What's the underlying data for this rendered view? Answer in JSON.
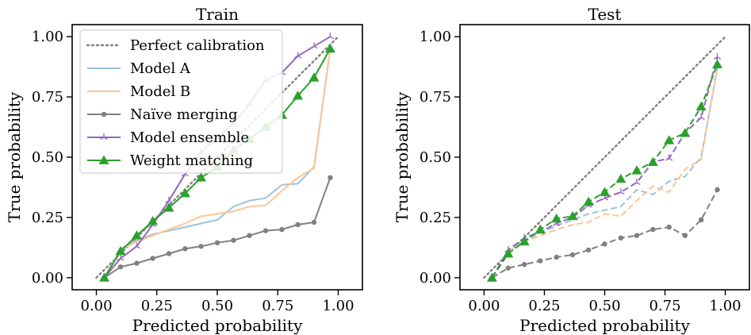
{
  "chart_data": [
    {
      "type": "line",
      "title": "Train",
      "xlabel": "Predicted probability",
      "ylabel": "True probability",
      "xlim": [
        -0.1,
        1.1
      ],
      "ylim": [
        -0.05,
        1.05
      ],
      "xticks": [
        "0.00",
        "0.25",
        "0.50",
        "0.75",
        "1.00"
      ],
      "yticks": [
        "0.00",
        "0.25",
        "0.50",
        "0.75",
        "1.00"
      ],
      "legend": "upper-left",
      "line_style": "solid",
      "series": [
        {
          "name": "Perfect calibration",
          "color": "#808080",
          "marker": "none",
          "style": "dotted",
          "x": [
            0,
            1
          ],
          "y": [
            0,
            1
          ]
        },
        {
          "name": "Model A",
          "color": "#9ec3dc",
          "marker": "none",
          "style": "solid",
          "x": [
            0.033,
            0.1,
            0.167,
            0.233,
            0.3,
            0.367,
            0.433,
            0.5,
            0.567,
            0.633,
            0.7,
            0.767,
            0.833,
            0.9,
            0.967
          ],
          "y": [
            0.0,
            0.12,
            0.155,
            0.18,
            0.195,
            0.21,
            0.225,
            0.24,
            0.295,
            0.32,
            0.33,
            0.385,
            0.39,
            0.46,
            0.95
          ]
        },
        {
          "name": "Model B",
          "color": "#fdc493",
          "marker": "none",
          "style": "solid",
          "x": [
            0.033,
            0.1,
            0.167,
            0.233,
            0.3,
            0.367,
            0.433,
            0.5,
            0.567,
            0.633,
            0.7,
            0.767,
            0.833,
            0.9,
            0.967
          ],
          "y": [
            0.0,
            0.115,
            0.15,
            0.175,
            0.2,
            0.225,
            0.255,
            0.265,
            0.275,
            0.295,
            0.3,
            0.36,
            0.415,
            0.455,
            0.95
          ]
        },
        {
          "name": "Naïve merging",
          "color": "#808080",
          "marker": "dot",
          "style": "solid",
          "x": [
            0.033,
            0.1,
            0.167,
            0.233,
            0.3,
            0.367,
            0.433,
            0.5,
            0.567,
            0.633,
            0.7,
            0.767,
            0.833,
            0.9,
            0.967
          ],
          "y": [
            0.0,
            0.045,
            0.06,
            0.08,
            0.1,
            0.12,
            0.13,
            0.145,
            0.155,
            0.175,
            0.195,
            0.2,
            0.22,
            0.23,
            0.415
          ]
        },
        {
          "name": "Model ensemble",
          "color": "#9467bd",
          "marker": "tri",
          "style": "solid",
          "x": [
            0.033,
            0.1,
            0.167,
            0.233,
            0.3,
            0.367,
            0.433,
            0.5,
            0.567,
            0.633,
            0.7,
            0.767,
            0.833,
            0.9,
            0.967
          ],
          "y": [
            0.0,
            0.08,
            0.13,
            0.22,
            0.32,
            0.43,
            0.52,
            0.58,
            0.64,
            0.72,
            0.82,
            0.85,
            0.92,
            0.96,
            1.0
          ]
        },
        {
          "name": "Weight matching",
          "color": "#2ca02c",
          "marker": "triangle",
          "style": "solid",
          "x": [
            0.033,
            0.1,
            0.167,
            0.233,
            0.3,
            0.367,
            0.433,
            0.5,
            0.567,
            0.633,
            0.7,
            0.767,
            0.833,
            0.9,
            0.967
          ],
          "y": [
            0.0,
            0.11,
            0.175,
            0.235,
            0.29,
            0.35,
            0.415,
            0.46,
            0.53,
            0.575,
            0.625,
            0.675,
            0.755,
            0.83,
            0.95
          ]
        }
      ]
    },
    {
      "type": "line",
      "title": "Test",
      "xlabel": "Predicted probability",
      "ylabel": "True probability",
      "xlim": [
        -0.1,
        1.1
      ],
      "ylim": [
        -0.05,
        1.05
      ],
      "xticks": [
        "0.00",
        "0.25",
        "0.50",
        "0.75",
        "1.00"
      ],
      "yticks": [
        "0.00",
        "0.25",
        "0.50",
        "0.75",
        "1.00"
      ],
      "line_style": "dashed",
      "series": [
        {
          "name": "Perfect calibration",
          "color": "#808080",
          "marker": "none",
          "style": "dotted",
          "x": [
            0,
            1
          ],
          "y": [
            0,
            1
          ]
        },
        {
          "name": "Model A",
          "color": "#9ec3dc",
          "marker": "none",
          "style": "dashed",
          "x": [
            0.033,
            0.1,
            0.167,
            0.233,
            0.3,
            0.367,
            0.433,
            0.5,
            0.567,
            0.633,
            0.7,
            0.767,
            0.833,
            0.9,
            0.967
          ],
          "y": [
            0.0,
            0.11,
            0.155,
            0.185,
            0.215,
            0.24,
            0.265,
            0.28,
            0.295,
            0.365,
            0.345,
            0.4,
            0.42,
            0.5,
            0.87
          ]
        },
        {
          "name": "Model B",
          "color": "#fdc493",
          "marker": "none",
          "style": "dashed",
          "x": [
            0.033,
            0.1,
            0.167,
            0.233,
            0.3,
            0.367,
            0.433,
            0.5,
            0.567,
            0.633,
            0.7,
            0.767,
            0.833,
            0.9,
            0.967
          ],
          "y": [
            0.0,
            0.105,
            0.15,
            0.175,
            0.2,
            0.22,
            0.23,
            0.265,
            0.255,
            0.32,
            0.38,
            0.355,
            0.45,
            0.49,
            0.87
          ]
        },
        {
          "name": "Naïve merging",
          "color": "#808080",
          "marker": "dot",
          "style": "dashed",
          "x": [
            0.033,
            0.1,
            0.167,
            0.233,
            0.3,
            0.367,
            0.433,
            0.5,
            0.567,
            0.633,
            0.7,
            0.767,
            0.833,
            0.9,
            0.967
          ],
          "y": [
            0.0,
            0.04,
            0.055,
            0.07,
            0.085,
            0.095,
            0.115,
            0.14,
            0.165,
            0.175,
            0.2,
            0.21,
            0.175,
            0.24,
            0.365
          ]
        },
        {
          "name": "Model ensemble",
          "color": "#9467bd",
          "marker": "tri",
          "style": "dashed",
          "x": [
            0.033,
            0.1,
            0.167,
            0.233,
            0.3,
            0.367,
            0.433,
            0.5,
            0.567,
            0.633,
            0.7,
            0.767,
            0.833,
            0.9,
            0.967
          ],
          "y": [
            0.0,
            0.115,
            0.165,
            0.19,
            0.225,
            0.25,
            0.3,
            0.33,
            0.355,
            0.395,
            0.48,
            0.495,
            0.6,
            0.665,
            0.915
          ]
        },
        {
          "name": "Weight matching",
          "color": "#2ca02c",
          "marker": "triangle",
          "style": "dashed",
          "x": [
            0.033,
            0.1,
            0.167,
            0.233,
            0.3,
            0.367,
            0.433,
            0.5,
            0.567,
            0.633,
            0.7,
            0.767,
            0.833,
            0.9,
            0.967
          ],
          "y": [
            0.0,
            0.1,
            0.15,
            0.2,
            0.245,
            0.255,
            0.315,
            0.355,
            0.41,
            0.445,
            0.48,
            0.57,
            0.6,
            0.71,
            0.885
          ]
        }
      ]
    }
  ]
}
